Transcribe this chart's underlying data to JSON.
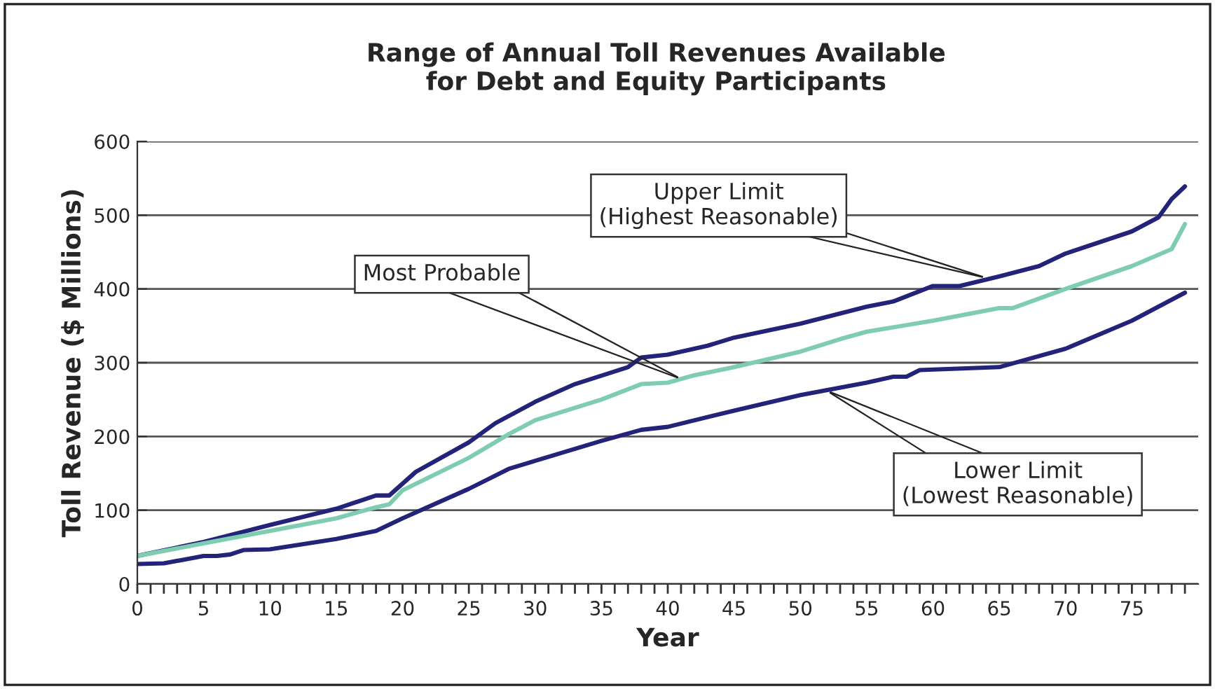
{
  "chart_data": {
    "type": "line",
    "title": "Range of Annual Toll Revenues Available\nfor Debt and Equity Participants",
    "xlabel": "Year",
    "ylabel": "Toll Revenue ($ Millions)",
    "series": [
      {
        "color": "#23237a",
        "x": [
          0,
          5,
          10,
          15,
          18,
          19,
          21,
          25,
          27,
          30,
          33,
          37,
          38,
          40,
          43,
          45,
          50,
          55,
          57,
          60,
          62,
          65,
          68,
          70,
          75,
          77,
          78,
          79
        ],
        "values": [
          38,
          57,
          80,
          102,
          120,
          120,
          152,
          192,
          218,
          247,
          271,
          294,
          307,
          311,
          323,
          334,
          353,
          376,
          383,
          404,
          404,
          417,
          431,
          448,
          478,
          497,
          522,
          539
        ]
      },
      {
        "color": "#7fcdb0",
        "x": [
          0,
          5,
          10,
          15,
          18,
          19,
          20,
          25,
          28,
          30,
          35,
          38,
          40,
          42,
          45,
          50,
          53,
          55,
          60,
          65,
          66,
          70,
          75,
          78,
          79
        ],
        "values": [
          38,
          55,
          72,
          89,
          104,
          108,
          127,
          171,
          203,
          222,
          250,
          271,
          273,
          283,
          294,
          315,
          332,
          342,
          357,
          374,
          374,
          400,
          431,
          454,
          488
        ]
      },
      {
        "color": "#23237a",
        "x": [
          0,
          2,
          5,
          6,
          7,
          8,
          10,
          15,
          18,
          20,
          25,
          28,
          30,
          35,
          38,
          40,
          45,
          50,
          55,
          57,
          58,
          59,
          65,
          70,
          75,
          79
        ],
        "values": [
          27,
          28,
          38,
          38,
          40,
          46,
          47,
          61,
          72,
          89,
          129,
          156,
          167,
          194,
          209,
          213,
          235,
          256,
          273,
          281,
          281,
          290,
          294,
          319,
          357,
          395
        ]
      }
    ],
    "annotations": [
      {
        "text": "Upper Limit\n(Highest Reasonable)",
        "x": 64,
        "y": 415
      },
      {
        "text": "Most Probable",
        "x": 41,
        "y": 278
      },
      {
        "text": "Lower Limit\n(Lowest Reasonable)",
        "x": 52,
        "y": 262
      }
    ],
    "xlim": [
      0,
      80
    ],
    "ylim": [
      0,
      600
    ],
    "yticks": [
      0,
      100,
      200,
      300,
      400,
      500,
      600
    ],
    "xticks": [
      0,
      {
        "value": 1,
        "label": null
      },
      {
        "value": 2,
        "label": null
      },
      {
        "value": 3,
        "label": null
      },
      {
        "value": 4,
        "label": null
      },
      5,
      {
        "value": 6,
        "label": null
      },
      {
        "value": 7,
        "label": null
      },
      {
        "value": 8,
        "label": null
      },
      {
        "value": 9,
        "label": null
      },
      10,
      {
        "value": 11,
        "label": null
      },
      {
        "value": 12,
        "label": null
      },
      {
        "value": 13,
        "label": null
      },
      {
        "value": 14,
        "label": null
      },
      15,
      {
        "value": 16,
        "label": null
      },
      {
        "value": 17,
        "label": null
      },
      {
        "value": 18,
        "label": null
      },
      {
        "value": 19,
        "label": null
      },
      20,
      {
        "value": 21,
        "label": null
      },
      {
        "value": 22,
        "label": null
      },
      {
        "value": 23,
        "label": null
      },
      {
        "value": 24,
        "label": null
      },
      25,
      {
        "value": 26,
        "label": null
      },
      {
        "value": 27,
        "label": null
      },
      {
        "value": 28,
        "label": null
      },
      {
        "value": 29,
        "label": null
      },
      30,
      {
        "value": 31,
        "label": null
      },
      {
        "value": 32,
        "label": null
      },
      {
        "value": 33,
        "label": null
      },
      {
        "value": 34,
        "label": null
      },
      35,
      {
        "value": 36,
        "label": null
      },
      {
        "value": 37,
        "label": null
      },
      {
        "value": 38,
        "label": null
      },
      {
        "value": 39,
        "label": null
      },
      40,
      {
        "value": 41,
        "label": null
      },
      {
        "value": 42,
        "label": null
      },
      {
        "value": 43,
        "label": null
      },
      {
        "value": 44,
        "label": null
      },
      45,
      {
        "value": 46,
        "label": null
      },
      {
        "value": 47,
        "label": null
      },
      {
        "value": 48,
        "label": null
      },
      {
        "value": 49,
        "label": null
      },
      50,
      {
        "value": 51,
        "label": null
      },
      {
        "value": 52,
        "label": null
      },
      {
        "value": 53,
        "label": null
      },
      {
        "value": 54,
        "label": null
      },
      55,
      {
        "value": 56,
        "label": null
      },
      {
        "value": 57,
        "label": null
      },
      {
        "value": 58,
        "label": null
      },
      {
        "value": 59,
        "label": null
      },
      60,
      {
        "value": 61,
        "label": null
      },
      {
        "value": 62,
        "label": null
      },
      {
        "value": 63,
        "label": null
      },
      {
        "value": 64,
        "label": null
      },
      65,
      {
        "value": 66,
        "label": null
      },
      {
        "value": 67,
        "label": null
      },
      {
        "value": 68,
        "label": null
      },
      {
        "value": 69,
        "label": null
      },
      70,
      {
        "value": 71,
        "label": null
      },
      {
        "value": 72,
        "label": null
      },
      {
        "value": 73,
        "label": null
      },
      {
        "value": 74,
        "label": null
      },
      75,
      {
        "value": 76,
        "label": null
      },
      {
        "value": 77,
        "label": null
      },
      {
        "value": 78,
        "label": null
      },
      {
        "value": 79,
        "label": null
      }
    ],
    "grid": "y",
    "legend": false,
    "marker": "none",
    "line_style": "solid"
  }
}
